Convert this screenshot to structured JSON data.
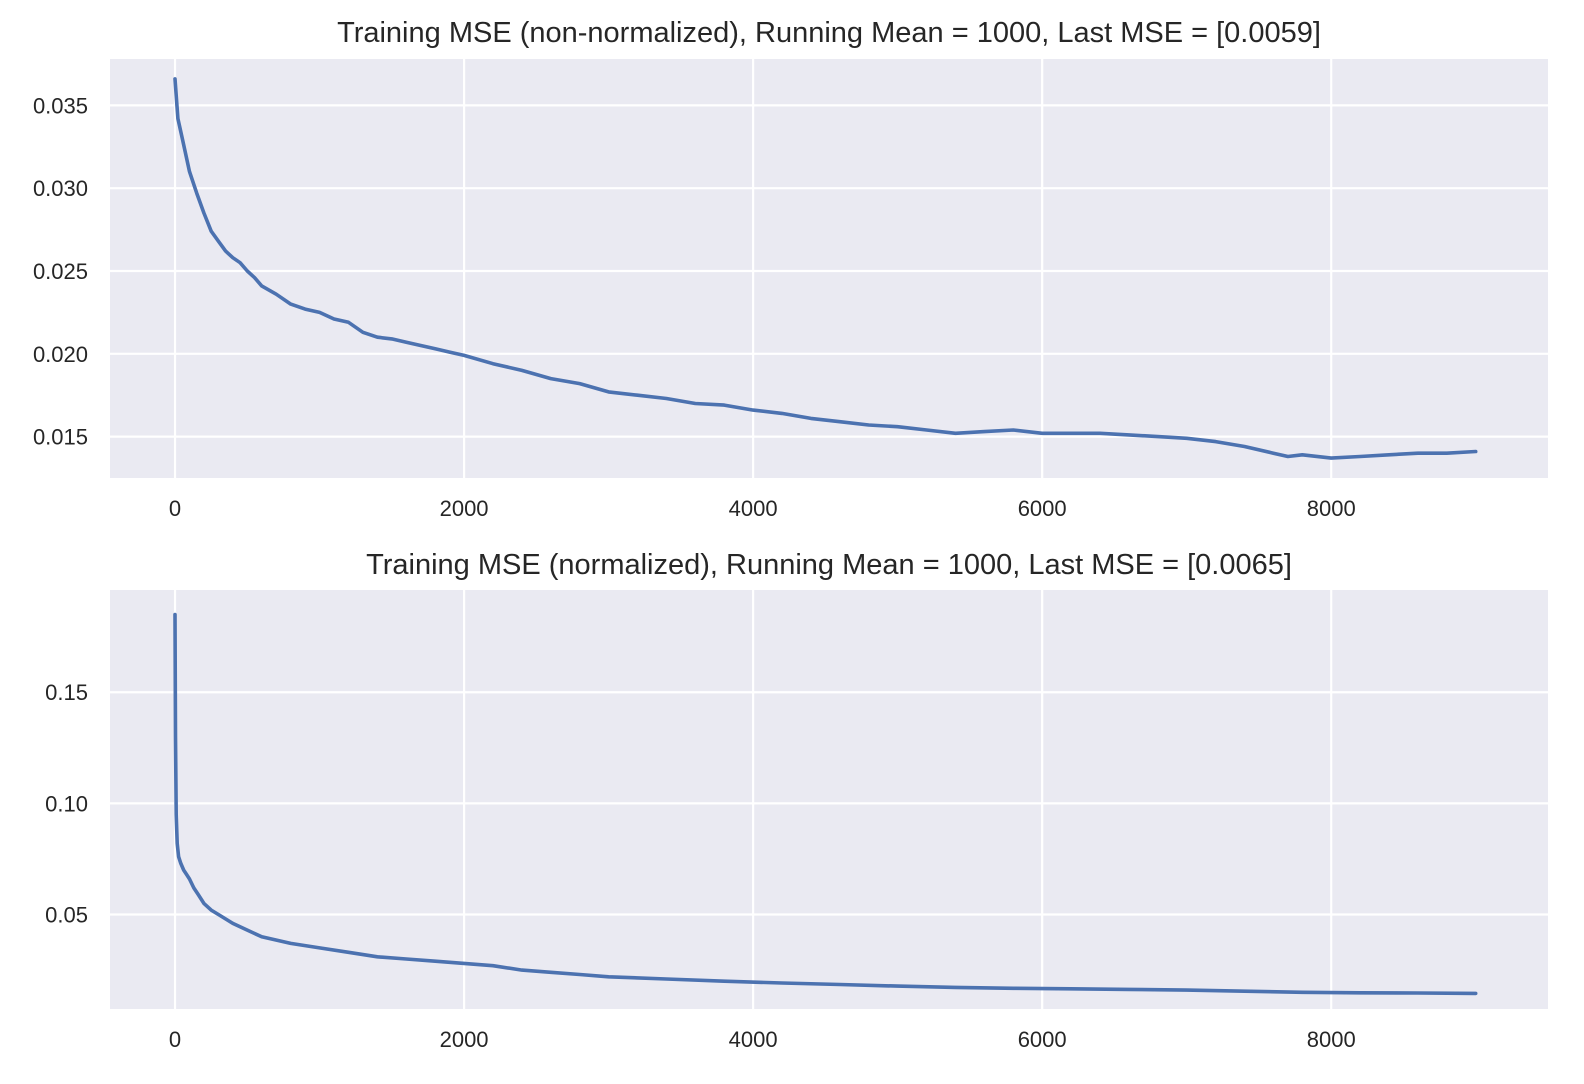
{
  "chart_data": [
    {
      "type": "line",
      "title": "Training MSE (non-normalized), Running Mean = 1000, Last MSE = [0.0059]",
      "xlabel": "",
      "ylabel": "",
      "xlim": [
        -450,
        9500
      ],
      "ylim": [
        0.0125,
        0.0378
      ],
      "xticks": [
        0,
        2000,
        4000,
        6000,
        8000
      ],
      "xtick_labels": [
        "0",
        "2000",
        "4000",
        "6000",
        "8000"
      ],
      "yticks": [
        0.015,
        0.02,
        0.025,
        0.03,
        0.035
      ],
      "ytick_labels": [
        "0.015",
        "0.020",
        "0.025",
        "0.030",
        "0.035"
      ],
      "grid": true,
      "series": [
        {
          "color": "#4c72b0",
          "x": [
            0,
            20,
            50,
            100,
            150,
            200,
            250,
            300,
            350,
            400,
            450,
            500,
            550,
            600,
            700,
            800,
            900,
            1000,
            1100,
            1200,
            1300,
            1400,
            1500,
            1600,
            1700,
            1800,
            1900,
            2000,
            2200,
            2400,
            2600,
            2800,
            3000,
            3200,
            3400,
            3600,
            3800,
            4000,
            4200,
            4400,
            4600,
            4800,
            5000,
            5200,
            5400,
            5600,
            5800,
            6000,
            6200,
            6400,
            6600,
            6800,
            7000,
            7200,
            7400,
            7600,
            7700,
            7800,
            8000,
            8200,
            8400,
            8600,
            8800,
            9000
          ],
          "y": [
            0.0366,
            0.0342,
            0.033,
            0.031,
            0.0297,
            0.0285,
            0.0274,
            0.0268,
            0.0262,
            0.0258,
            0.0255,
            0.025,
            0.0246,
            0.0241,
            0.0236,
            0.023,
            0.0227,
            0.0225,
            0.0221,
            0.0219,
            0.0213,
            0.021,
            0.0209,
            0.0207,
            0.0205,
            0.0203,
            0.0201,
            0.0199,
            0.0194,
            0.019,
            0.0185,
            0.0182,
            0.0177,
            0.0175,
            0.0173,
            0.017,
            0.0169,
            0.0166,
            0.0164,
            0.0161,
            0.0159,
            0.0157,
            0.0156,
            0.0154,
            0.0152,
            0.0153,
            0.0154,
            0.0152,
            0.0152,
            0.0152,
            0.0151,
            0.015,
            0.0149,
            0.0147,
            0.0144,
            0.014,
            0.0138,
            0.0139,
            0.0137,
            0.0138,
            0.0139,
            0.014,
            0.014,
            0.0141
          ]
        }
      ]
    },
    {
      "type": "line",
      "title": "Training MSE (normalized), Running Mean = 1000, Last MSE = [0.0065]",
      "xlabel": "",
      "ylabel": "",
      "xlim": [
        -450,
        9500
      ],
      "ylim": [
        0.0075,
        0.196
      ],
      "xticks": [
        0,
        2000,
        4000,
        6000,
        8000
      ],
      "xtick_labels": [
        "0",
        "2000",
        "4000",
        "6000",
        "8000"
      ],
      "yticks": [
        0.05,
        0.1,
        0.15
      ],
      "ytick_labels": [
        "0.05",
        "0.10",
        "0.15"
      ],
      "grid": true,
      "series": [
        {
          "color": "#4c72b0",
          "x": [
            0,
            3,
            8,
            15,
            25,
            40,
            60,
            80,
            100,
            130,
            160,
            200,
            250,
            300,
            400,
            500,
            600,
            800,
            1000,
            1200,
            1400,
            1600,
            1800,
            2000,
            2200,
            2400,
            2600,
            2800,
            3000,
            3400,
            3800,
            4200,
            4600,
            5000,
            5400,
            5800,
            6200,
            6600,
            7000,
            7400,
            7800,
            8200,
            8600,
            9000
          ],
          "y": [
            0.185,
            0.13,
            0.095,
            0.082,
            0.076,
            0.073,
            0.07,
            0.068,
            0.066,
            0.062,
            0.059,
            0.055,
            0.052,
            0.05,
            0.046,
            0.043,
            0.04,
            0.037,
            0.035,
            0.033,
            0.031,
            0.03,
            0.029,
            0.028,
            0.027,
            0.025,
            0.024,
            0.023,
            0.022,
            0.021,
            0.02,
            0.0192,
            0.0185,
            0.0178,
            0.0172,
            0.0168,
            0.0166,
            0.0163,
            0.016,
            0.0155,
            0.015,
            0.0148,
            0.0147,
            0.0145
          ]
        }
      ]
    }
  ],
  "style": {
    "plot_background": "#eaeaf2",
    "grid_color": "#ffffff",
    "text_color": "#262626"
  }
}
